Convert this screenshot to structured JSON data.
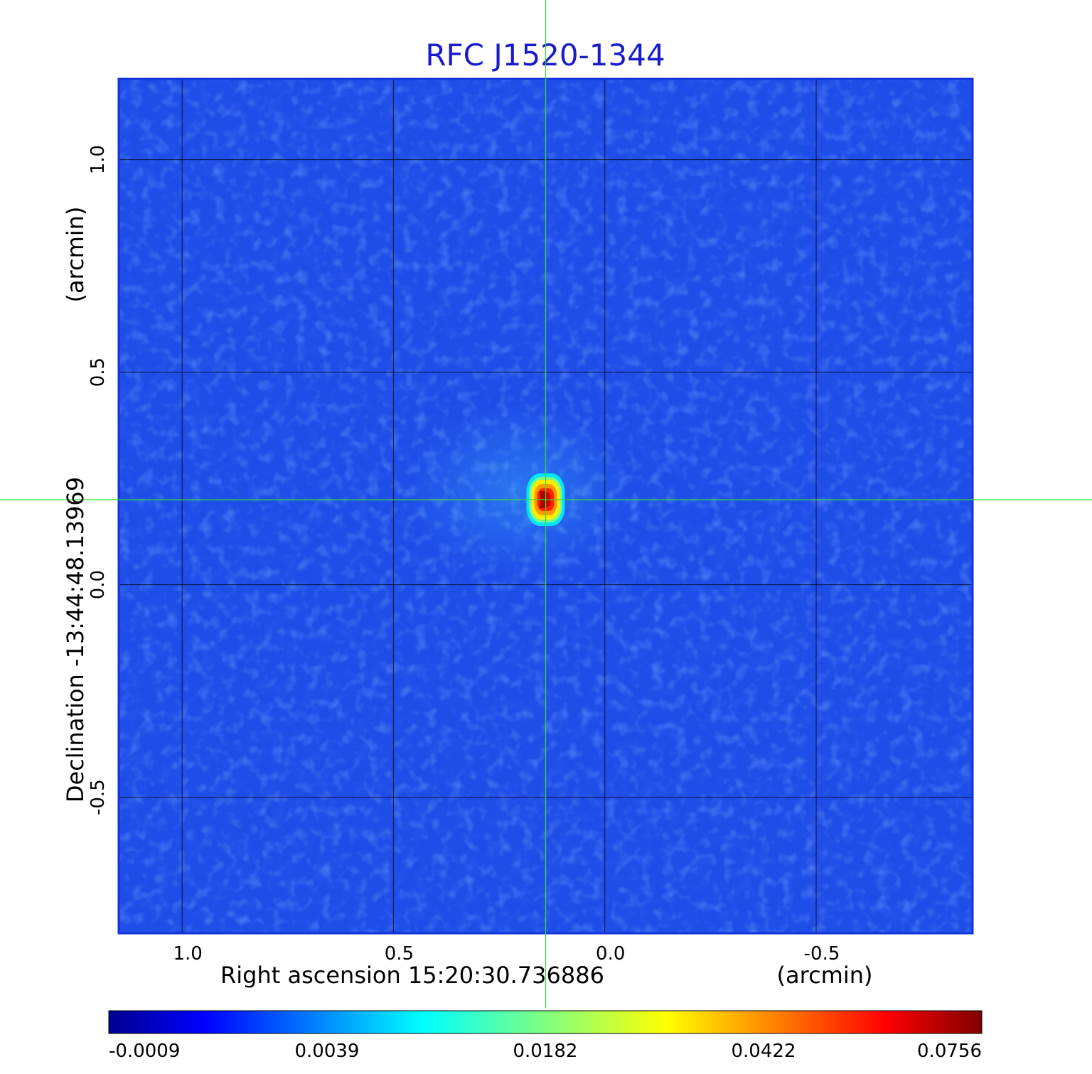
{
  "chart_data": {
    "type": "heatmap",
    "title": "RFC J1520-1344",
    "xlabel": "Right ascension  15:20:30.736886",
    "xunit": "(arcmin)",
    "ylabel": "Declination  -13:44:48.13969",
    "yunit": "(arcmin)",
    "x_ticks": [
      1.0,
      0.5,
      0.0,
      -0.5
    ],
    "x_tick_labels": [
      "1.0",
      "0.5",
      "0.0",
      "-0.5"
    ],
    "y_ticks": [
      1.0,
      0.5,
      0.0,
      -0.5
    ],
    "y_tick_labels": [
      "1.0",
      "0.5",
      "0.0",
      "-0.5"
    ],
    "xlim": [
      1.15,
      -0.87
    ],
    "ylim": [
      -0.82,
      1.19
    ],
    "grid": true,
    "colormap": "jet",
    "colorbar": {
      "ticks": [
        -0.0009,
        0.0039,
        0.0182,
        0.0422,
        0.0756
      ],
      "tick_labels": [
        "-0.0009",
        "0.0039",
        "0.0182",
        "0.0422",
        "0.0756"
      ]
    },
    "peak": {
      "x": 0.14,
      "y": 0.2,
      "value": 0.0756
    },
    "crosshair": {
      "x": 0.14,
      "y": 0.2,
      "color": "#33dd33"
    },
    "colors": {
      "title": "#1a1acc",
      "frame": "#1133dd",
      "grid": "#000000",
      "background_map": "#1f4de8"
    }
  }
}
